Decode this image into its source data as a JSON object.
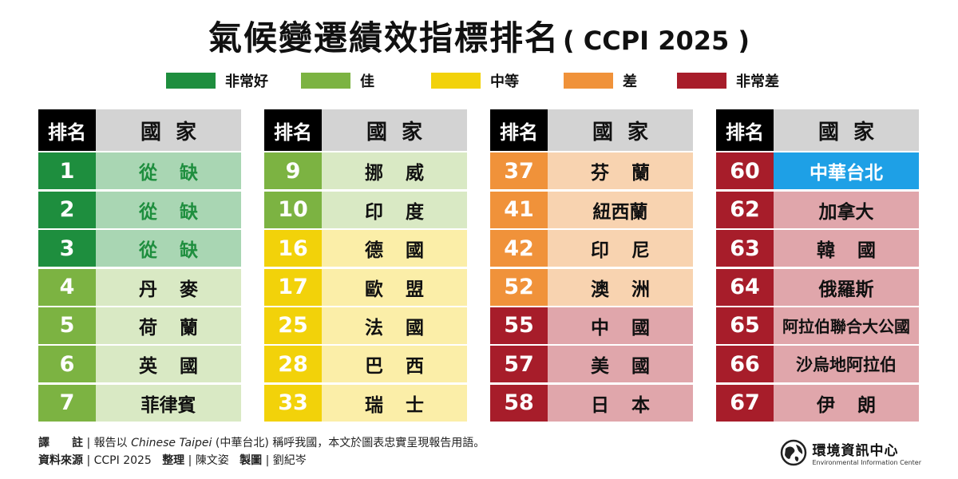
{
  "title": {
    "main": "氣候變遷績效指標排名",
    "sub": "( CCPI 2025 )"
  },
  "colors": {
    "very_good": "#1e8e3e",
    "good": "#7cb342",
    "medium": "#f2d20a",
    "poor": "#f0923a",
    "very_poor": "#a71d2a",
    "very_good_bg": "#a9d6b3",
    "good_bg": "#d9e9c4",
    "medium_bg": "#fbeea8",
    "poor_bg": "#f8d3b0",
    "very_poor_bg": "#e0a6ab",
    "highlight": "#1ea0e6"
  },
  "legend": [
    {
      "label": "非常好",
      "color": "#1e8e3e"
    },
    {
      "label": "佳",
      "color": "#7cb342"
    },
    {
      "label": "中等",
      "color": "#f2d20a"
    },
    {
      "label": "差",
      "color": "#f0923a"
    },
    {
      "label": "非常差",
      "color": "#a71d2a"
    }
  ],
  "header": {
    "rank": "排名",
    "country": "國家"
  },
  "chart_data": {
    "type": "table",
    "title": "氣候變遷績效指標排名 ( CCPI 2025 )",
    "columns": [
      "排名",
      "國家"
    ],
    "tables": [
      {
        "rows": [
          {
            "rank": "1",
            "country": "從缺",
            "level": "very_good",
            "blank": true
          },
          {
            "rank": "2",
            "country": "從缺",
            "level": "very_good",
            "blank": true
          },
          {
            "rank": "3",
            "country": "從缺",
            "level": "very_good",
            "blank": true
          },
          {
            "rank": "4",
            "country": "丹麥",
            "level": "good"
          },
          {
            "rank": "5",
            "country": "荷蘭",
            "level": "good"
          },
          {
            "rank": "6",
            "country": "英國",
            "level": "good"
          },
          {
            "rank": "7",
            "country": "菲律賓",
            "level": "good"
          }
        ]
      },
      {
        "rows": [
          {
            "rank": "9",
            "country": "挪威",
            "level": "good"
          },
          {
            "rank": "10",
            "country": "印度",
            "level": "good"
          },
          {
            "rank": "16",
            "country": "德國",
            "level": "medium"
          },
          {
            "rank": "17",
            "country": "歐盟",
            "level": "medium"
          },
          {
            "rank": "25",
            "country": "法國",
            "level": "medium"
          },
          {
            "rank": "28",
            "country": "巴西",
            "level": "medium"
          },
          {
            "rank": "33",
            "country": "瑞士",
            "level": "medium"
          }
        ]
      },
      {
        "rows": [
          {
            "rank": "37",
            "country": "芬蘭",
            "level": "poor"
          },
          {
            "rank": "41",
            "country": "紐西蘭",
            "level": "poor"
          },
          {
            "rank": "42",
            "country": "印尼",
            "level": "poor"
          },
          {
            "rank": "52",
            "country": "澳洲",
            "level": "poor"
          },
          {
            "rank": "55",
            "country": "中國",
            "level": "very_poor"
          },
          {
            "rank": "57",
            "country": "美國",
            "level": "very_poor"
          },
          {
            "rank": "58",
            "country": "日本",
            "level": "very_poor"
          }
        ]
      },
      {
        "rows": [
          {
            "rank": "60",
            "country": "中華台北",
            "level": "very_poor",
            "highlight": true
          },
          {
            "rank": "62",
            "country": "加拿大",
            "level": "very_poor"
          },
          {
            "rank": "63",
            "country": "韓國",
            "level": "very_poor"
          },
          {
            "rank": "64",
            "country": "俄羅斯",
            "level": "very_poor"
          },
          {
            "rank": "65",
            "country": "阿拉伯聯合大公國",
            "level": "very_poor"
          },
          {
            "rank": "66",
            "country": "沙烏地阿拉伯",
            "level": "very_poor"
          },
          {
            "rank": "67",
            "country": "伊朗",
            "level": "very_poor"
          }
        ]
      }
    ]
  },
  "footer": {
    "note_label": "譯　　註",
    "note_pre": "報告以 ",
    "note_italic": "Chinese Taipei",
    "note_post": " (中華台北) 稱呼我國，本文於圖表忠實呈現報告用語。",
    "source_label": "資料來源",
    "source_value": "CCPI 2025",
    "editor_label": "整理",
    "editor_value": "陳文姿",
    "designer_label": "製圖",
    "designer_value": "劉紀岑",
    "separator": "|"
  },
  "logo": {
    "zh": "環境資訊中心",
    "en": "Environmental Information Center"
  }
}
